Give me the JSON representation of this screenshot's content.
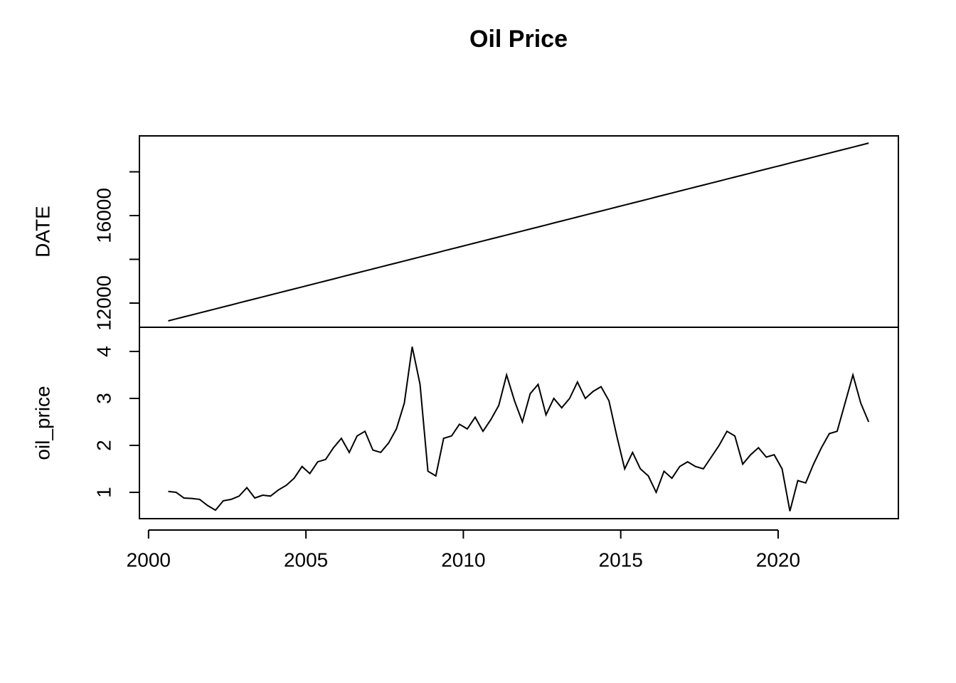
{
  "chart_data": {
    "type": "line",
    "title": "Oil Price",
    "x": [
      2000.625,
      2000.875,
      2001.125,
      2001.375,
      2001.625,
      2001.875,
      2002.125,
      2002.375,
      2002.625,
      2002.875,
      2003.125,
      2003.375,
      2003.625,
      2003.875,
      2004.125,
      2004.375,
      2004.625,
      2004.875,
      2005.125,
      2005.375,
      2005.625,
      2005.875,
      2006.125,
      2006.375,
      2006.625,
      2006.875,
      2007.125,
      2007.375,
      2007.625,
      2007.875,
      2008.125,
      2008.375,
      2008.625,
      2008.875,
      2009.125,
      2009.375,
      2009.625,
      2009.875,
      2010.125,
      2010.375,
      2010.625,
      2010.875,
      2011.125,
      2011.375,
      2011.625,
      2011.875,
      2012.125,
      2012.375,
      2012.625,
      2012.875,
      2013.125,
      2013.375,
      2013.625,
      2013.875,
      2014.125,
      2014.375,
      2014.625,
      2014.875,
      2015.125,
      2015.375,
      2015.625,
      2015.875,
      2016.125,
      2016.375,
      2016.625,
      2016.875,
      2017.125,
      2017.375,
      2017.625,
      2017.875,
      2018.125,
      2018.375,
      2018.625,
      2018.875,
      2019.125,
      2019.375,
      2019.625,
      2019.875,
      2020.125,
      2020.375,
      2020.625,
      2020.875,
      2021.125,
      2021.375,
      2021.625,
      2021.875,
      2022.125,
      2022.375,
      2022.625,
      2022.875
    ],
    "xlim": [
      1999.71,
      2023.82
    ],
    "xticks": [
      2000,
      2005,
      2010,
      2015,
      2020
    ],
    "series": [
      {
        "name": "DATE",
        "color": "#000000",
        "ylim": [
          10894,
          19642
        ],
        "yticks": [
          12000,
          {
            "value": 14000,
            "label": null
          },
          16000,
          {
            "value": 18000,
            "label": null
          }
        ],
        "values": [
          11186,
          11277,
          11369,
          11460,
          11551,
          11643,
          11734,
          11825,
          11916,
          12008,
          12099,
          12190,
          12282,
          12373,
          12464,
          12556,
          12647,
          12738,
          12829,
          12921,
          13012,
          13103,
          13195,
          13286,
          13377,
          13469,
          13560,
          13651,
          13742,
          13834,
          13925,
          14016,
          14108,
          14199,
          14290,
          14382,
          14473,
          14564,
          14655,
          14747,
          14838,
          14929,
          15021,
          15112,
          15203,
          15295,
          15386,
          15477,
          15568,
          15660,
          15751,
          15842,
          15934,
          16025,
          16116,
          16208,
          16299,
          16390,
          16481,
          16573,
          16664,
          16755,
          16847,
          16938,
          17029,
          17121,
          17212,
          17303,
          17394,
          17486,
          17577,
          17668,
          17760,
          17851,
          17942,
          18034,
          18125,
          18216,
          18307,
          18399,
          18490,
          18581,
          18673,
          18764,
          18855,
          18947,
          19038,
          19129,
          19220,
          19312
        ]
      },
      {
        "name": "oil_price",
        "color": "#000000",
        "ylim": [
          0.44,
          4.515
        ],
        "yticks": [
          1,
          2,
          3,
          4
        ],
        "values": [
          1.02,
          1.0,
          0.88,
          0.87,
          0.85,
          0.72,
          0.62,
          0.82,
          0.85,
          0.92,
          1.1,
          0.88,
          0.94,
          0.92,
          1.05,
          1.15,
          1.3,
          1.55,
          1.4,
          1.65,
          1.7,
          1.95,
          2.15,
          1.85,
          2.2,
          2.3,
          1.9,
          1.85,
          2.05,
          2.35,
          2.9,
          4.1,
          3.3,
          1.45,
          1.35,
          2.15,
          2.2,
          2.45,
          2.35,
          2.6,
          2.3,
          2.55,
          2.85,
          3.5,
          2.95,
          2.5,
          3.1,
          3.3,
          2.65,
          3.0,
          2.8,
          3.0,
          3.35,
          3.0,
          3.15,
          3.25,
          2.95,
          2.2,
          1.5,
          1.85,
          1.5,
          1.35,
          1.0,
          1.45,
          1.3,
          1.55,
          1.65,
          1.55,
          1.5,
          1.75,
          2.0,
          2.3,
          2.2,
          1.6,
          1.8,
          1.95,
          1.75,
          1.8,
          1.5,
          0.6,
          1.25,
          1.2,
          1.6,
          1.95,
          2.25,
          2.3,
          2.9,
          3.5,
          2.9,
          2.5
        ]
      }
    ]
  }
}
